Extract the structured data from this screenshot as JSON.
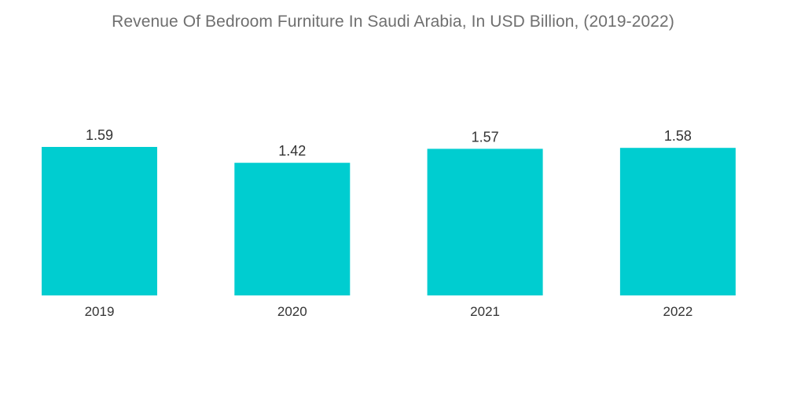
{
  "chart_data": {
    "type": "bar",
    "title": "Revenue Of Bedroom Furniture In Saudi Arabia, In USD Billion, (2019-2022)",
    "categories": [
      "2019",
      "2020",
      "2021",
      "2022"
    ],
    "values": [
      1.59,
      1.42,
      1.57,
      1.58
    ],
    "value_labels": [
      "1.59",
      "1.42",
      "1.57",
      "1.58"
    ],
    "xlabel": "",
    "ylabel": "",
    "ylim": [
      0,
      1.59
    ],
    "grid": false,
    "legend": "none",
    "colors": {
      "bar": "#00CDD0",
      "title": "#6F6F6F",
      "text": "#333333"
    }
  }
}
